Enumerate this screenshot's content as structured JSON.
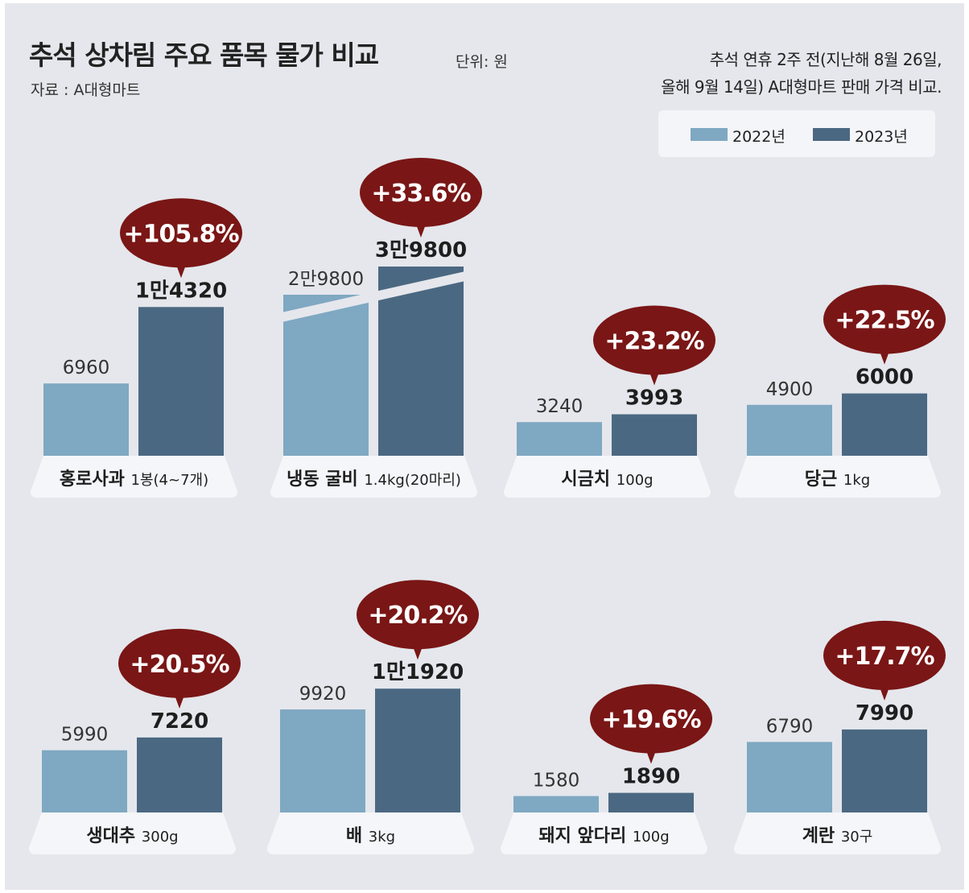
{
  "header": {
    "title": "추석 상차림 주요 품목 물가 비교",
    "unit": "단위: 원",
    "source": "자료 : A대형마트",
    "note_line1": "추석 연휴 2주 전(지난해 8월 26일,",
    "note_line2": "올해 9월 14일) A대형마트 판매 가격 비교."
  },
  "legend": {
    "items": [
      {
        "label": "2022년",
        "color": "#7fa8c2"
      },
      {
        "label": "2023년",
        "color": "#4b6882"
      }
    ]
  },
  "colors": {
    "bar_2022": "#7fa8c2",
    "bar_2023": "#4b6882",
    "bubble": "#7a1616",
    "bubble_text": "#ffffff",
    "background": "#e5e7ec",
    "label_pill": "#f5f6f9"
  },
  "chart_data": {
    "type": "bar",
    "title": "추석 상차림 주요 품목 물가 비교",
    "unit": "원",
    "series": [
      {
        "name": "2022년",
        "values": [
          6960,
          29800,
          3240,
          4900,
          5990,
          9920,
          1580,
          6790
        ]
      },
      {
        "name": "2023년",
        "values": [
          14320,
          39800,
          3993,
          6000,
          7220,
          11920,
          1890,
          7990
        ]
      }
    ],
    "items": [
      {
        "name": "홍로사과",
        "spec": "1봉(4~7개)",
        "label_2022": "6960",
        "label_2023": "1만4320",
        "change": "+105.8%"
      },
      {
        "name": "냉동 굴비",
        "spec": "1.4kg(20마리)",
        "label_2022": "2만9800",
        "label_2023": "3만9800",
        "change": "+33.6%",
        "axis_break": true
      },
      {
        "name": "시금치",
        "spec": "100g",
        "label_2022": "3240",
        "label_2023": "3993",
        "change": "+23.2%"
      },
      {
        "name": "당근",
        "spec": "1kg",
        "label_2022": "4900",
        "label_2023": "6000",
        "change": "+22.5%"
      },
      {
        "name": "생대추",
        "spec": "300g",
        "label_2022": "5990",
        "label_2023": "7220",
        "change": "+20.5%"
      },
      {
        "name": "배",
        "spec": "3kg",
        "label_2022": "9920",
        "label_2023": "1만1920",
        "change": "+20.2%"
      },
      {
        "name": "돼지 앞다리",
        "spec": "100g",
        "label_2022": "1580",
        "label_2023": "1890",
        "change": "+19.6%"
      },
      {
        "name": "계란",
        "spec": "30구",
        "label_2022": "6790",
        "label_2023": "7990",
        "change": "+17.7%"
      }
    ]
  }
}
